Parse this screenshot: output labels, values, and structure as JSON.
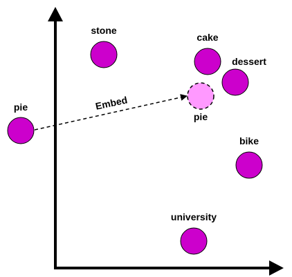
{
  "colors": {
    "point_fill": "#cc00cc",
    "embedded_fill": "#ff99ff",
    "stroke": "#000000",
    "axis": "#000000"
  },
  "points": [
    {
      "id": "stone",
      "label": "stone"
    },
    {
      "id": "cake",
      "label": "cake"
    },
    {
      "id": "dessert",
      "label": "dessert"
    },
    {
      "id": "bike",
      "label": "bike"
    },
    {
      "id": "university",
      "label": "university"
    }
  ],
  "source": {
    "label": "pie"
  },
  "embedded": {
    "label": "pie"
  },
  "arrow": {
    "label": "Embed"
  }
}
